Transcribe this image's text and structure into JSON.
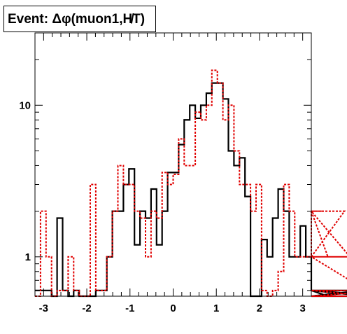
{
  "chart_data": {
    "type": "step-histogram",
    "title": "Event: Δφ(muon1,H̸T)",
    "x_tick_labels": [
      "-3",
      "-2",
      "-1",
      "0",
      "1",
      "2",
      "3"
    ],
    "y_tick_labels": [
      "1",
      "10"
    ],
    "xlim": [
      -3.2,
      3.2
    ],
    "ylim": [
      0.55,
      30
    ],
    "y_scale": "log",
    "bin_width": 0.128,
    "series": [
      {
        "style": "solid",
        "color": "#000000",
        "values": [
          0.6,
          0.6,
          0.6,
          0,
          1.8,
          0.6,
          0,
          0.6,
          0,
          0,
          0,
          0.6,
          0.6,
          1,
          2,
          2,
          3,
          3.8,
          1.2,
          2,
          1.8,
          2.8,
          1.2,
          2,
          3.6,
          3.6,
          5.5,
          8,
          10,
          8.2,
          10,
          12,
          14,
          14,
          11,
          5,
          4,
          4.5,
          2.5,
          0,
          0,
          1.3,
          1,
          1.8,
          2.8,
          2,
          1,
          1,
          1.6,
          1,
          0.6,
          0.6,
          0.6,
          0,
          0,
          0,
          0,
          0,
          0,
          0.6,
          0,
          0,
          0.6,
          0.6,
          0
        ]
      },
      {
        "style": "dashed",
        "color": "#e00000",
        "values": [
          0,
          2,
          1,
          0,
          0.6,
          0.6,
          1,
          0.6,
          0,
          0,
          3,
          0.6,
          0.6,
          1,
          2,
          4,
          3,
          3,
          2,
          1.8,
          1,
          2,
          1.8,
          3.6,
          3,
          3.5,
          6,
          4,
          4,
          9,
          8,
          10,
          17,
          14,
          8,
          10,
          5,
          3,
          3,
          2,
          3,
          0.6,
          0,
          0.6,
          0.8,
          3,
          2,
          1,
          1,
          1,
          2,
          2,
          2,
          1,
          1,
          1,
          2,
          1,
          1,
          1,
          0.6,
          0,
          0,
          0.6,
          0.6
        ]
      }
    ]
  }
}
